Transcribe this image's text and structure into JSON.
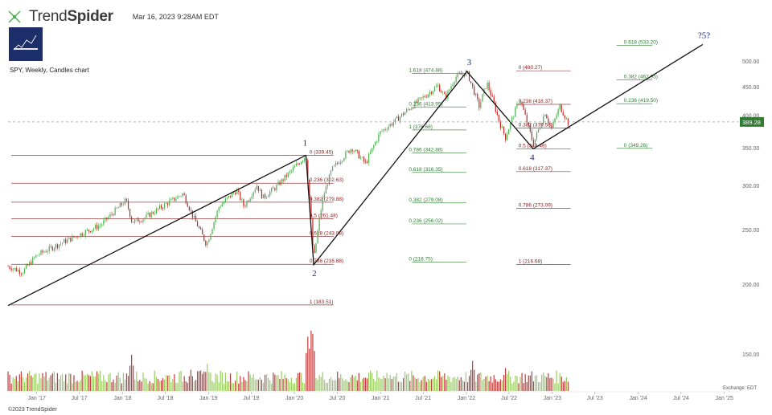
{
  "header": {
    "brand_a": "Trend",
    "brand_b": "Spider",
    "timestamp": "Mar 16, 2023 9:28AM EDT"
  },
  "subtitle": "SPY, Weekly, Candles chart",
  "footer": {
    "copyright": "©2023 TrendSpider",
    "exchange": "Exchange: EDT"
  },
  "colors": {
    "up": "#4caf50",
    "down": "#c62828",
    "fib_red": "#8b1a1a",
    "fib_green": "#2e7d32",
    "volume_up": "#8bc34a",
    "volume_down": "#b71c1c",
    "price_tag_bg": "#2e7d32",
    "wave_label": "#1a237e"
  },
  "chart_data": {
    "type": "candlestick",
    "symbol": "SPY",
    "timeframe": "Weekly",
    "ylim": [
      160,
      540
    ],
    "y_ticks": [
      150,
      200,
      250,
      300,
      350,
      400,
      450,
      500
    ],
    "x_ticks": [
      "Jan '17",
      "Jul '17",
      "Jan '18",
      "Jul '18",
      "Jan '19",
      "Jul '19",
      "Jan '20",
      "Jul '20",
      "Jan '21",
      "Jul '21",
      "Jan '22",
      "Jul '22",
      "Jan '23",
      "Jul '23",
      "Jan '24",
      "Jul '24",
      "Jan '25"
    ],
    "x_tick_dates": [
      "2017-01-01",
      "2017-07-01",
      "2018-01-01",
      "2018-07-01",
      "2019-01-01",
      "2019-07-01",
      "2020-01-01",
      "2020-07-01",
      "2021-01-01",
      "2021-07-01",
      "2022-01-01",
      "2022-07-01",
      "2023-01-01",
      "2023-07-01",
      "2024-01-01",
      "2024-07-01",
      "2025-01-01"
    ],
    "x_range": [
      "2016-09-01",
      "2025-03-01"
    ],
    "current_price": "389.28",
    "price_path": [
      [
        "2016-09-01",
        215
      ],
      [
        "2016-11-01",
        210
      ],
      [
        "2017-01-01",
        225
      ],
      [
        "2017-04-01",
        235
      ],
      [
        "2017-07-01",
        245
      ],
      [
        "2017-10-01",
        255
      ],
      [
        "2018-01-15",
        282
      ],
      [
        "2018-02-10",
        258
      ],
      [
        "2018-04-01",
        262
      ],
      [
        "2018-06-01",
        272
      ],
      [
        "2018-09-15",
        290
      ],
      [
        "2018-10-25",
        265
      ],
      [
        "2018-12-24",
        235
      ],
      [
        "2019-02-15",
        275
      ],
      [
        "2019-04-30",
        294
      ],
      [
        "2019-06-01",
        275
      ],
      [
        "2019-07-25",
        300
      ],
      [
        "2019-08-20",
        285
      ],
      [
        "2019-10-15",
        298
      ],
      [
        "2019-12-30",
        322
      ],
      [
        "2020-02-19",
        339
      ],
      [
        "2020-03-23",
        220
      ],
      [
        "2020-05-01",
        285
      ],
      [
        "2020-06-08",
        320
      ],
      [
        "2020-08-31",
        350
      ],
      [
        "2020-10-30",
        328
      ],
      [
        "2020-12-31",
        373
      ],
      [
        "2021-03-01",
        390
      ],
      [
        "2021-05-15",
        415
      ],
      [
        "2021-07-15",
        435
      ],
      [
        "2021-09-01",
        452
      ],
      [
        "2021-10-04",
        430
      ],
      [
        "2021-11-15",
        468
      ],
      [
        "2022-01-03",
        477
      ],
      [
        "2022-02-24",
        415
      ],
      [
        "2022-03-29",
        457
      ],
      [
        "2022-05-20",
        390
      ],
      [
        "2022-06-16",
        365
      ],
      [
        "2022-08-16",
        428
      ],
      [
        "2022-10-12",
        355
      ],
      [
        "2022-12-01",
        405
      ],
      [
        "2022-12-28",
        378
      ],
      [
        "2023-02-02",
        415
      ],
      [
        "2023-03-13",
        385
      ]
    ],
    "volume_spikes": [
      {
        "date": "2018-02-05",
        "value": 0.6
      },
      {
        "date": "2018-10-15",
        "value": 0.35
      },
      {
        "date": "2018-12-24",
        "value": 0.45
      },
      {
        "date": "2020-02-28",
        "value": 0.9
      },
      {
        "date": "2020-03-13",
        "value": 1.0
      },
      {
        "date": "2020-03-20",
        "value": 0.95
      },
      {
        "date": "2021-01-29",
        "value": 0.3
      },
      {
        "date": "2022-01-24",
        "value": 0.5
      },
      {
        "date": "2022-06-13",
        "value": 0.38
      }
    ],
    "waves": [
      {
        "label": "1",
        "date": "2020-02-19",
        "price": 339.45
      },
      {
        "label": "2",
        "date": "2020-03-23",
        "price": 216.5
      },
      {
        "label": "3",
        "date": "2022-01-03",
        "price": 479
      },
      {
        "label": "4",
        "date": "2022-10-12",
        "price": 348.5
      },
      {
        "label": "?5?",
        "date": "2024-10-01",
        "price": 535
      }
    ],
    "trendline": {
      "from_date": "2016-09-01",
      "from_price": 183,
      "to_date": "2020-02-19",
      "to_price": 339.45
    },
    "wave4_extension": {
      "from_date": "2022-10-12",
      "from_price": 348.5,
      "to_date": "2024-10-01",
      "to_price": 535
    },
    "fib_sets": [
      {
        "color_key": "fib_red",
        "start_date": "2016-09-15",
        "end_date": "2020-06-15",
        "label_date": "2020-03-05",
        "levels": [
          {
            "ratio": "0",
            "price": 339.45
          },
          {
            "ratio": "0.236",
            "price": 302.63
          },
          {
            "ratio": "0.382",
            "price": 279.88
          },
          {
            "ratio": "0.5",
            "price": 261.48
          },
          {
            "ratio": "0.618",
            "price": 243.08
          },
          {
            "ratio": "0.786",
            "price": 216.88
          },
          {
            "ratio": "1",
            "price": 183.51
          }
        ]
      },
      {
        "color_key": "fib_green",
        "start_date": "2021-05-15",
        "end_date": "2021-12-31",
        "label_date": "2021-05-01",
        "levels": [
          {
            "ratio": "1.618",
            "price": 474.88
          },
          {
            "ratio": "0.236",
            "price": 413.95
          },
          {
            "ratio": "1",
            "price": 376.68
          },
          {
            "ratio": "0.786",
            "price": 342.88
          },
          {
            "ratio": "0.618",
            "price": 316.35
          },
          {
            "ratio": "0.382",
            "price": 279.08
          },
          {
            "ratio": "0.236",
            "price": 256.02
          },
          {
            "ratio": "0",
            "price": 218.75
          }
        ]
      },
      {
        "color_key": "fib_red",
        "start_date": "2022-08-01",
        "end_date": "2023-03-20",
        "label_date": "2022-08-10",
        "levels": [
          {
            "ratio": "0",
            "price": 480.27
          },
          {
            "ratio": "0.236",
            "price": 418.37
          },
          {
            "ratio": "0.382",
            "price": 379.58
          },
          {
            "ratio": "0.5",
            "price": 348.48
          },
          {
            "ratio": "0.618",
            "price": 317.37
          },
          {
            "ratio": "0.786",
            "price": 273.09
          },
          {
            "ratio": "1",
            "price": 216.68
          }
        ]
      },
      {
        "color_key": "fib_green",
        "start_date": "2023-10-01",
        "end_date": "2024-03-01",
        "label_date": "2023-11-01",
        "levels": [
          {
            "ratio": "0.618",
            "price": 533.2
          },
          {
            "ratio": "0.382",
            "price": 462.95
          },
          {
            "ratio": "0.236",
            "price": 419.5
          },
          {
            "ratio": "0",
            "price": 349.26
          }
        ]
      }
    ]
  }
}
